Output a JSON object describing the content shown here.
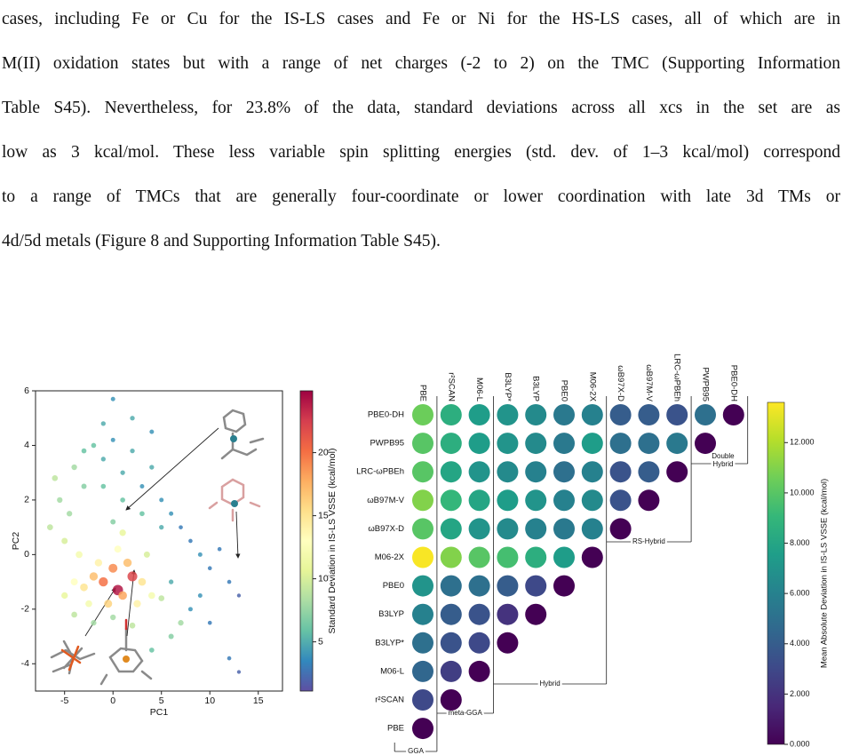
{
  "paragraph": [
    "cases, including Fe or Cu for the IS-LS cases and Fe or Ni for the HS-LS cases, all of which are in",
    "M(II) oxidation states but with a range of net charges (-2 to 2) on the TMC (Supporting Information",
    "Table S45). Nevertheless, for 23.8% of the data, standard deviations across all xcs in the set are as",
    "low as 3 kcal/mol. These less variable spin splitting energies (std. dev. of 1–3 kcal/mol) correspond",
    "to a range of TMCs that are generally four-coordinate or lower coordination with late 3d TMs or",
    "4d/5d metals (Figure 8 and Supporting Information Table S45)."
  ],
  "chart_data": [
    {
      "type": "scatter",
      "xlabel": "PC1",
      "ylabel": "PC2",
      "xlim": [
        -8,
        17.5
      ],
      "ylim": [
        -5,
        6
      ],
      "xticks": [
        -5,
        0,
        5,
        10,
        15
      ],
      "yticks": [
        -4,
        -2,
        0,
        2,
        4,
        6
      ],
      "x": [
        0.5,
        2,
        -1,
        0,
        1,
        -2,
        -3,
        1.5,
        3,
        -0.5,
        2.5,
        -1.5,
        0.5,
        -4,
        -2.5,
        4,
        -5,
        -3.5,
        1,
        3.5,
        -6,
        -5.5,
        -6.5,
        -4.5,
        -5,
        -4,
        -2,
        0,
        2,
        5,
        7,
        6,
        4,
        -3,
        -4,
        -2,
        -1,
        0,
        1,
        2,
        3,
        4,
        5,
        6,
        7,
        8,
        9,
        10,
        11,
        12,
        13,
        0,
        -1,
        2,
        4,
        5,
        3,
        1,
        -1,
        -3,
        0,
        8,
        10,
        12,
        13,
        6,
        9
      ],
      "y": [
        -1.3,
        -0.8,
        -1,
        -0.5,
        -1.5,
        -0.8,
        -1.2,
        -0.3,
        -1,
        -1.8,
        -1.8,
        -0.3,
        0.2,
        -1,
        -1.8,
        -1.5,
        -1.5,
        0,
        0.8,
        0,
        2.8,
        2,
        1,
        1.5,
        0.5,
        -2.2,
        -2.5,
        -2.3,
        -2.6,
        -1.6,
        -2.5,
        -3,
        -3.5,
        2.5,
        3.2,
        4,
        3.5,
        4.2,
        3,
        3.8,
        2.5,
        3.2,
        2,
        1.5,
        1,
        0.5,
        0,
        -0.5,
        0.2,
        -1,
        -1.5,
        5.7,
        4.8,
        5,
        4.5,
        1,
        1.5,
        2,
        2.5,
        3.8,
        1.2,
        -2,
        -2.5,
        -3.8,
        -4.3,
        -1,
        -1.5
      ],
      "color_values": [
        24,
        22,
        20,
        19,
        18,
        17,
        15,
        17,
        15,
        16,
        14,
        14,
        13,
        13,
        12,
        12,
        11,
        12,
        11,
        10,
        9,
        8,
        9,
        8,
        10,
        9,
        8,
        8,
        9,
        9,
        8,
        7,
        6,
        7,
        8,
        6,
        5,
        4,
        5,
        5,
        4,
        5,
        4,
        4,
        3,
        3,
        4,
        3,
        3,
        3,
        2,
        4,
        5,
        5,
        4,
        5,
        6,
        6,
        6,
        6,
        7,
        4,
        3,
        3,
        2,
        5,
        4
      ],
      "colormap": "Spectral_r",
      "clim": [
        1.1,
        24.9
      ],
      "colorbar_label": "Standard Deviation in IS-LS VSSE (kcal/mol)",
      "colorbar_ticks": [
        5,
        10,
        15,
        20
      ]
    },
    {
      "type": "heatmap",
      "rows": [
        "PBE0-DH",
        "PWPB95",
        "LRC-ωPBEh",
        "ωB97M-V",
        "ωB97X-D",
        "M06-2X",
        "PBE0",
        "B3LYP",
        "B3LYP*",
        "M06-L",
        "r²SCAN",
        "PBE"
      ],
      "columns": [
        "PBE",
        "r²SCAN",
        "M06-L",
        "B3LYP*",
        "B3LYP",
        "PBE0",
        "M06-2X",
        "ωB97X-D",
        "ωB97M-V",
        "LRC-ωPBEh",
        "PWPB95",
        "PBE0-DH"
      ],
      "values": [
        [
          10.5,
          8.5,
          7.5,
          7,
          6.5,
          5.5,
          6,
          4,
          4,
          3.5,
          5,
          0
        ],
        [
          10,
          8.5,
          7.5,
          7,
          6.5,
          5.5,
          7.5,
          5,
          5,
          5.5,
          0,
          null
        ],
        [
          10,
          8,
          7,
          6.5,
          6,
          5,
          6,
          3.5,
          4,
          0,
          null,
          null
        ],
        [
          11,
          9,
          8,
          7.5,
          7,
          6,
          6.5,
          3.5,
          0,
          null,
          null,
          null
        ],
        [
          10,
          8,
          7,
          6.5,
          6,
          5.5,
          6,
          0,
          null,
          null,
          null,
          null
        ],
        [
          13.5,
          11,
          10,
          9.5,
          8.5,
          7.5,
          0,
          null,
          null,
          null,
          null,
          null
        ],
        [
          7,
          5,
          5,
          4,
          3,
          0,
          null,
          null,
          null,
          null,
          null,
          null
        ],
        [
          6,
          4,
          3.5,
          2,
          0,
          null,
          null,
          null,
          null,
          null,
          null,
          null
        ],
        [
          5,
          3.5,
          3,
          0,
          null,
          null,
          null,
          null,
          null,
          null,
          null,
          null
        ],
        [
          4.5,
          2.5,
          0,
          null,
          null,
          null,
          null,
          null,
          null,
          null,
          null,
          null
        ],
        [
          3,
          0,
          null,
          null,
          null,
          null,
          null,
          null,
          null,
          null,
          null,
          null
        ],
        [
          0,
          null,
          null,
          null,
          null,
          null,
          null,
          null,
          null,
          null,
          null,
          null
        ]
      ],
      "colormap": "viridis",
      "clim": [
        0,
        13.6
      ],
      "colorbar_ticks": [
        {
          "value": 0,
          "label": "0.000"
        },
        {
          "value": 2,
          "label": "2.000"
        },
        {
          "value": 4,
          "label": "4.000"
        },
        {
          "value": 6,
          "label": "6.000"
        },
        {
          "value": 8,
          "label": "8.000"
        },
        {
          "value": 10,
          "label": "10.000"
        },
        {
          "value": 12,
          "label": "12.000"
        }
      ],
      "colorbar_label": "Mean Absolute Deviation in IS-LS VSSE (kcal/mol)",
      "groups": [
        "GGA",
        "meta-GGA",
        "Hybrid",
        "RS-Hybrid",
        [
          "Double",
          "Hybrid"
        ]
      ]
    }
  ]
}
